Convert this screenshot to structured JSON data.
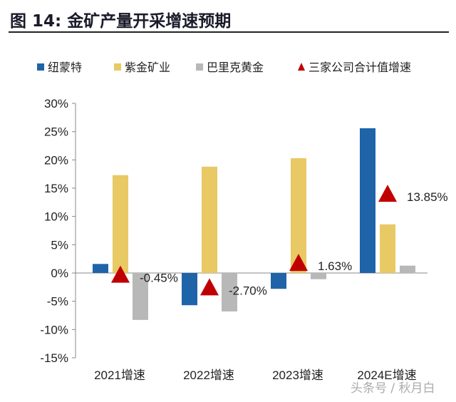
{
  "title": "图 14: 金矿产量开采增速预期",
  "watermark": "头条号 / 秋月白",
  "chart_data": {
    "type": "bar",
    "categories": [
      "2021增速",
      "2022增速",
      "2023增速",
      "2024E增速"
    ],
    "ylim": [
      -15,
      30
    ],
    "yticks": [
      "-15%",
      "-10%",
      "-5%",
      "0%",
      "5%",
      "10%",
      "15%",
      "20%",
      "25%",
      "30%"
    ],
    "ytick_values": [
      -15,
      -10,
      -5,
      0,
      5,
      10,
      15,
      20,
      25,
      30
    ],
    "grid": false,
    "legend": "top",
    "series": [
      {
        "name": "纽蒙特",
        "type": "bar",
        "color": "#1f64a8",
        "values": [
          1.6,
          -5.7,
          -2.8,
          25.6
        ]
      },
      {
        "name": "紫金矿业",
        "type": "bar",
        "color": "#e8c964",
        "values": [
          17.3,
          18.8,
          20.3,
          8.6
        ]
      },
      {
        "name": "巴里克黄金",
        "type": "bar",
        "color": "#b8b8b8",
        "values": [
          -8.3,
          -6.8,
          -1.1,
          1.3
        ]
      },
      {
        "name": "三家公司合计值增速",
        "type": "marker",
        "color": "#c00000",
        "values": [
          -0.45,
          -2.7,
          1.63,
          13.85
        ],
        "labels": [
          "-0.45%",
          "-2.70%",
          "1.63%",
          "13.85%"
        ]
      }
    ]
  }
}
